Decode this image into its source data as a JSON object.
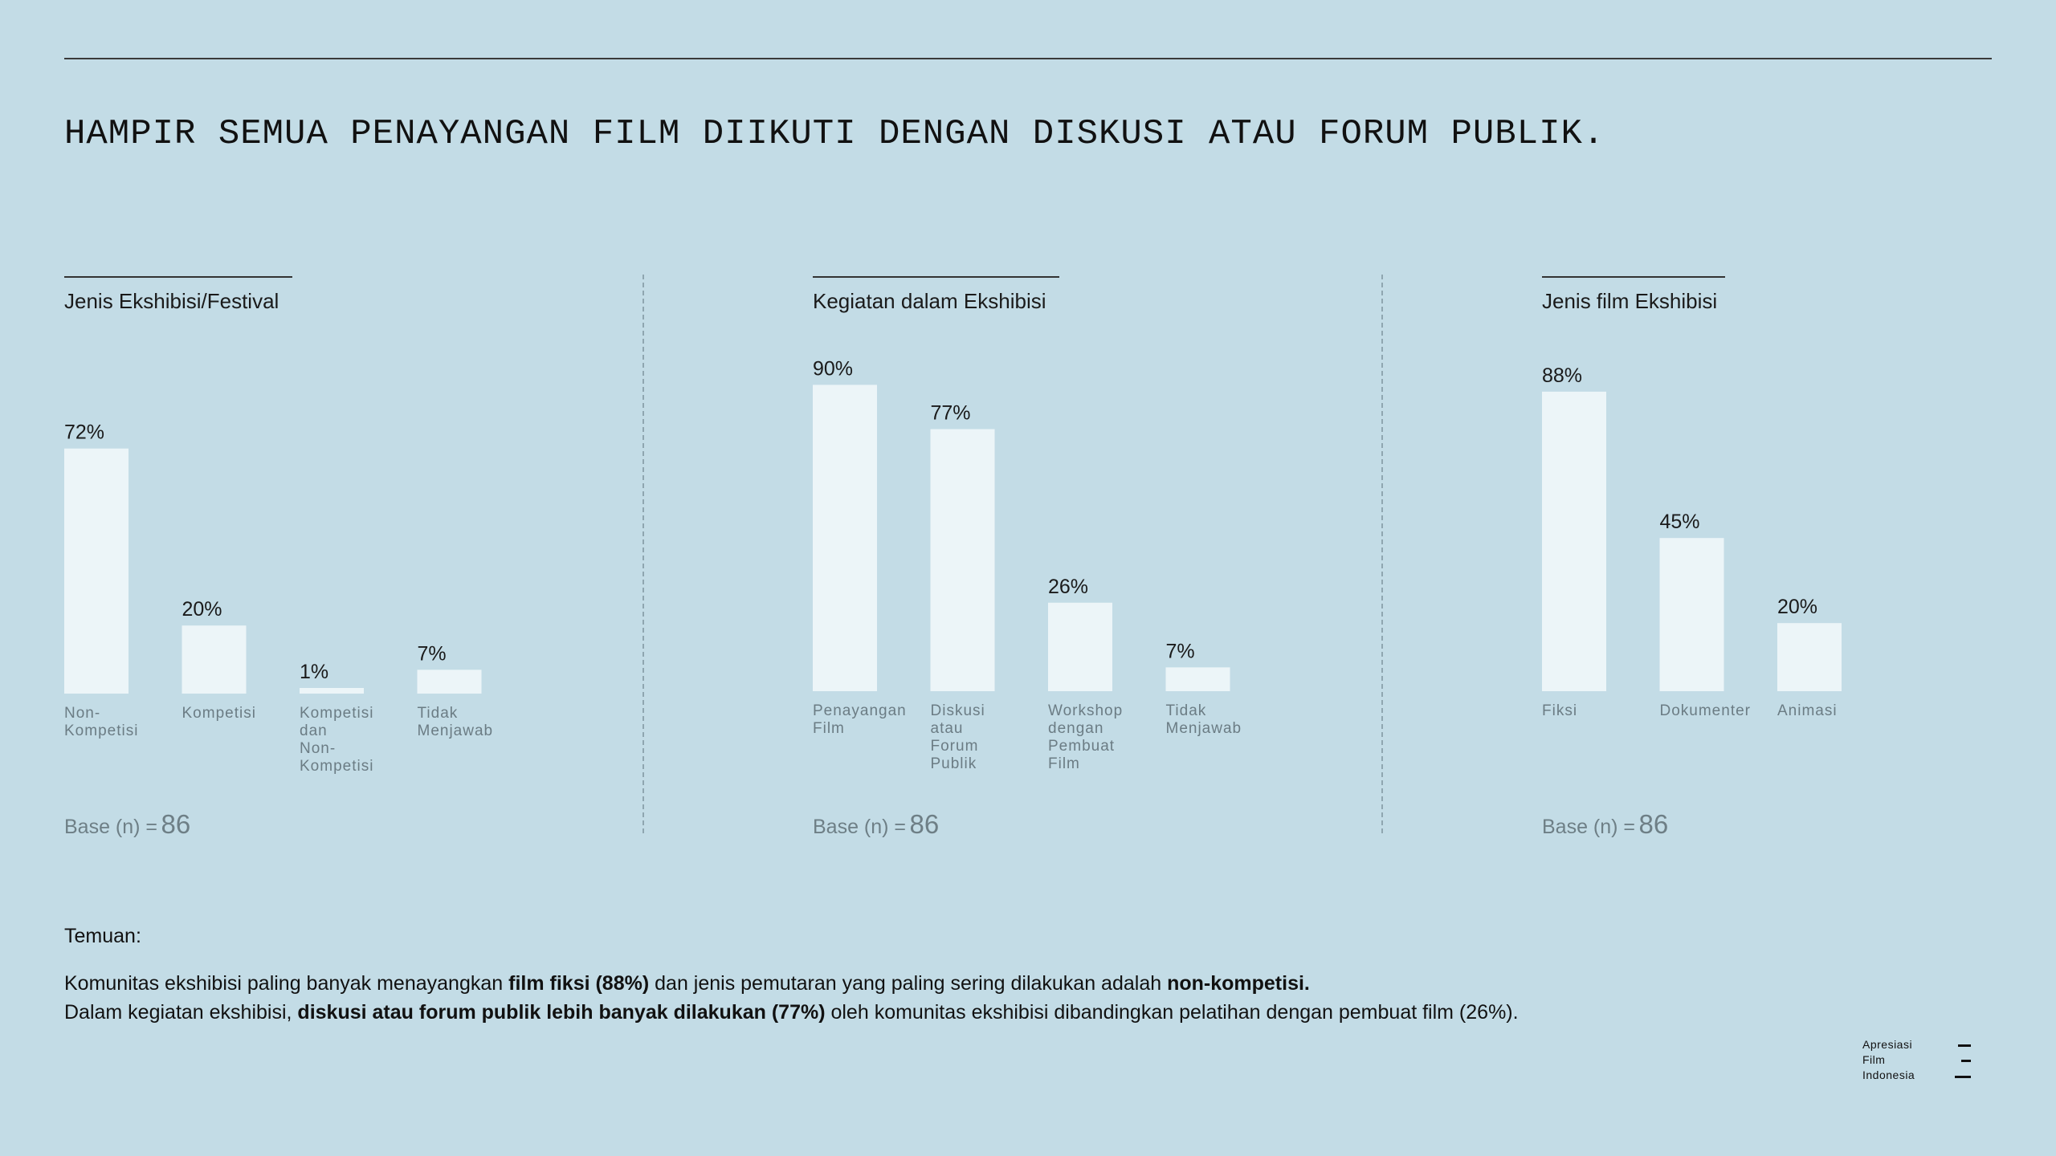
{
  "title": "HAMPIR SEMUA PENAYANGAN FILM DIIKUTI DENGAN DISKUSI ATAU FORUM PUBLIK.",
  "chart_data": [
    {
      "type": "bar",
      "title": "Jenis Ekshibisi/Festival",
      "categories": [
        [
          "Non-",
          "Kompetisi"
        ],
        [
          "Kompetisi"
        ],
        [
          "Kompetisi",
          "dan",
          "Non-",
          "Kompetisi"
        ],
        [
          "Tidak",
          "Menjawab"
        ]
      ],
      "values": [
        72,
        20,
        1,
        7
      ],
      "value_labels": [
        "72%",
        "20%",
        "1%",
        "7%"
      ],
      "unit": "%",
      "base_label": "Base (n) =",
      "base_value": "86"
    },
    {
      "type": "bar",
      "title": "Kegiatan dalam Ekshibisi",
      "categories": [
        [
          "Penayangan",
          "Film"
        ],
        [
          "Diskusi",
          "atau",
          "Forum",
          "Publik"
        ],
        [
          "Workshop",
          "dengan",
          "Pembuat",
          "Film"
        ],
        [
          "Tidak",
          "Menjawab"
        ]
      ],
      "values": [
        90,
        77,
        26,
        7
      ],
      "value_labels": [
        "90%",
        "77%",
        "26%",
        "7%"
      ],
      "unit": "%",
      "base_label": "Base (n) =",
      "base_value": "86"
    },
    {
      "type": "bar",
      "title": "Jenis film Ekshibisi",
      "categories": [
        [
          "Fiksi"
        ],
        [
          "Dokumenter"
        ],
        [
          "Animasi"
        ]
      ],
      "values": [
        88,
        45,
        20
      ],
      "value_labels": [
        "88%",
        "45%",
        "20%"
      ],
      "unit": "%",
      "base_label": "Base (n) =",
      "base_value": "86"
    }
  ],
  "findings": {
    "heading": "Temuan:",
    "line1": [
      {
        "text": "Komunitas ekshibisi paling banyak menayangkan ",
        "bold": false
      },
      {
        "text": "film fiksi (88%)",
        "bold": true
      },
      {
        "text": " dan jenis pemutaran yang paling sering dilakukan adalah ",
        "bold": false
      },
      {
        "text": "non-kompetisi.",
        "bold": true
      }
    ],
    "line2": [
      {
        "text": "Dalam kegiatan ekshibisi, ",
        "bold": false
      },
      {
        "text": "diskusi atau forum publik lebih banyak dilakukan (77%)",
        "bold": true
      },
      {
        "text": " oleh komunitas ekshibisi dibandingkan pelatihan dengan pembuat film (26%).",
        "bold": false
      }
    ]
  },
  "logo": {
    "line1": "Apresiasi",
    "line2": "Film",
    "line3": "Indonesia"
  },
  "colors": {
    "background": "#c3dce6",
    "bar": "#ecf5f8",
    "category_text": "#6b7c84",
    "base_text": "#6e7f86"
  }
}
